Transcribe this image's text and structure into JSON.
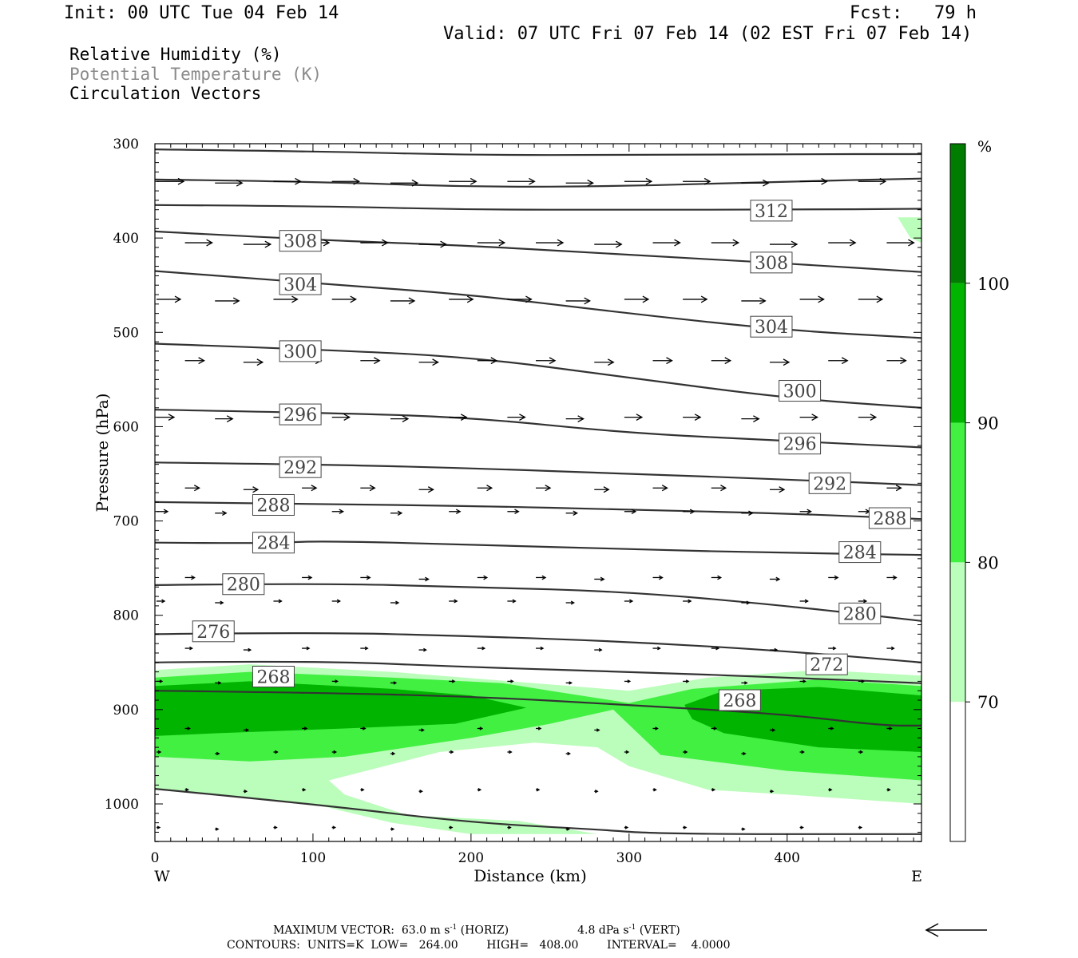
{
  "header": {
    "init": "Init: 00 UTC Tue 04 Feb 14",
    "fcst": "Fcst:   79 h",
    "valid": "Valid: 07 UTC Fri 07 Feb 14 (02 EST Fri 07 Feb 14)"
  },
  "titles": {
    "line1": "Relative Humidity (%)",
    "line2": "Potential Temperature (K)",
    "line3": "Circulation Vectors"
  },
  "footer": {
    "max_vector_label": "MAXIMUM VECTOR:",
    "horiz_value": "63.0 m s",
    "horiz_tag": "(HORIZ)",
    "vert_value": "4.8 dPa s",
    "vert_tag": "(VERT)",
    "exponent": "-1",
    "contours_line": "CONTOURS:  UNITS=K  LOW=   264.00        HIGH=   408.00        INTERVAL=    4.0000"
  },
  "colors": {
    "rh70": "#bbfdbb",
    "rh80": "#42f042",
    "rh90": "#00b400",
    "rh100": "#007d00",
    "contour": "#333333"
  },
  "chart_data": {
    "type": "contour",
    "xlabel": "Distance (km)",
    "ylabel": "Pressure (hPa)",
    "x_ticks": [
      0,
      100,
      200,
      300,
      400
    ],
    "y_ticks": [
      300,
      400,
      500,
      600,
      700,
      800,
      900,
      1000
    ],
    "xlim": [
      0,
      485
    ],
    "ylim": [
      300,
      1040
    ],
    "y_reversed": true,
    "left_end_label": "W",
    "right_end_label": "E",
    "colorbar": {
      "unit": "%",
      "levels": [
        70,
        80,
        90,
        100
      ],
      "colors": [
        "#ffffff",
        "#bbfdbb",
        "#42f042",
        "#00b400",
        "#007d00"
      ]
    },
    "theta_contours": [
      {
        "value": 268,
        "points": [
          [
            0,
            880
          ],
          [
            100,
            882
          ],
          [
            200,
            886
          ],
          [
            300,
            895
          ],
          [
            400,
            905
          ],
          [
            460,
            917
          ],
          [
            485,
            917
          ]
        ],
        "labels": [
          [
            75,
            865
          ],
          [
            370,
            890
          ]
        ]
      },
      {
        "value": 272,
        "points": [
          [
            0,
            850
          ],
          [
            100,
            848
          ],
          [
            200,
            855
          ],
          [
            300,
            860
          ],
          [
            400,
            866
          ],
          [
            485,
            872
          ]
        ],
        "labels": [
          [
            425,
            852
          ]
        ]
      },
      {
        "value": 276,
        "points": [
          [
            0,
            820
          ],
          [
            100,
            818
          ],
          [
            200,
            822
          ],
          [
            300,
            828
          ],
          [
            400,
            838
          ],
          [
            485,
            850
          ]
        ],
        "labels": [
          [
            37,
            817
          ]
        ]
      },
      {
        "value": 280,
        "points": [
          [
            0,
            768
          ],
          [
            100,
            766
          ],
          [
            200,
            770
          ],
          [
            300,
            775
          ],
          [
            400,
            790
          ],
          [
            485,
            806
          ]
        ],
        "labels": [
          [
            56,
            767
          ],
          [
            446,
            798
          ]
        ]
      },
      {
        "value": 284,
        "points": [
          [
            0,
            723
          ],
          [
            75,
            724
          ],
          [
            100,
            721
          ],
          [
            200,
            725
          ],
          [
            300,
            730
          ],
          [
            400,
            734
          ],
          [
            485,
            736
          ]
        ],
        "labels": [
          [
            75,
            723
          ],
          [
            446,
            733
          ]
        ]
      },
      {
        "value": 288,
        "points": [
          [
            0,
            680
          ],
          [
            100,
            682
          ],
          [
            200,
            684
          ],
          [
            300,
            688
          ],
          [
            400,
            692
          ],
          [
            485,
            698
          ]
        ],
        "labels": [
          [
            75,
            683
          ],
          [
            465,
            697
          ]
        ]
      },
      {
        "value": 292,
        "points": [
          [
            0,
            638
          ],
          [
            100,
            640
          ],
          [
            200,
            644
          ],
          [
            300,
            650
          ],
          [
            400,
            656
          ],
          [
            485,
            662
          ]
        ],
        "labels": [
          [
            92,
            643
          ],
          [
            427,
            660
          ]
        ]
      },
      {
        "value": 296,
        "points": [
          [
            0,
            582
          ],
          [
            100,
            585
          ],
          [
            200,
            590
          ],
          [
            300,
            607
          ],
          [
            400,
            615
          ],
          [
            485,
            622
          ]
        ],
        "labels": [
          [
            92,
            587
          ],
          [
            408,
            618
          ]
        ]
      },
      {
        "value": 300,
        "points": [
          [
            0,
            512
          ],
          [
            100,
            518
          ],
          [
            200,
            526
          ],
          [
            300,
            548
          ],
          [
            400,
            570
          ],
          [
            485,
            580
          ]
        ],
        "labels": [
          [
            92,
            520
          ],
          [
            408,
            562
          ]
        ]
      },
      {
        "value": 304,
        "points": [
          [
            0,
            435
          ],
          [
            100,
            448
          ],
          [
            200,
            460
          ],
          [
            300,
            480
          ],
          [
            400,
            498
          ],
          [
            485,
            506
          ]
        ],
        "labels": [
          [
            92,
            449
          ],
          [
            390,
            494
          ]
        ]
      },
      {
        "value": 308,
        "points": [
          [
            0,
            393
          ],
          [
            100,
            402
          ],
          [
            200,
            408
          ],
          [
            300,
            418
          ],
          [
            400,
            427
          ],
          [
            485,
            436
          ]
        ],
        "labels": [
          [
            92,
            403
          ],
          [
            390,
            426
          ]
        ]
      },
      {
        "value": 312,
        "points": [
          [
            0,
            365
          ],
          [
            100,
            366
          ],
          [
            200,
            370
          ],
          [
            300,
            370
          ],
          [
            400,
            370
          ],
          [
            485,
            369
          ]
        ],
        "labels": [
          [
            390,
            371
          ]
        ]
      },
      {
        "value": 316,
        "points": [
          [
            0,
            338
          ],
          [
            100,
            340
          ],
          [
            200,
            346
          ],
          [
            300,
            345
          ],
          [
            400,
            340
          ],
          [
            485,
            337
          ]
        ],
        "labels": []
      },
      {
        "value": 320,
        "points": [
          [
            0,
            306
          ],
          [
            100,
            308
          ],
          [
            200,
            312
          ],
          [
            300,
            312
          ],
          [
            400,
            311
          ],
          [
            485,
            311
          ]
        ],
        "labels": []
      },
      {
        "value": 264,
        "points": [
          [
            0,
            984
          ],
          [
            100,
            1000
          ],
          [
            200,
            1020
          ],
          [
            280,
            1027
          ],
          [
            320,
            1032
          ],
          [
            485,
            1032
          ]
        ],
        "labels": []
      }
    ],
    "vector_rows": [
      {
        "p": 340,
        "len": 34
      },
      {
        "p": 405,
        "len": 34
      },
      {
        "p": 465,
        "len": 30
      },
      {
        "p": 530,
        "len": 24
      },
      {
        "p": 590,
        "len": 22
      },
      {
        "p": 665,
        "len": 18
      },
      {
        "p": 690,
        "len": 14
      },
      {
        "p": 760,
        "len": 12
      },
      {
        "p": 785,
        "len": 10
      },
      {
        "p": 835,
        "len": 9
      },
      {
        "p": 870,
        "len": 7
      },
      {
        "p": 920,
        "len": 6
      },
      {
        "p": 945,
        "len": 5
      },
      {
        "p": 985,
        "len": 4
      },
      {
        "p": 1025,
        "len": 4
      }
    ]
  }
}
